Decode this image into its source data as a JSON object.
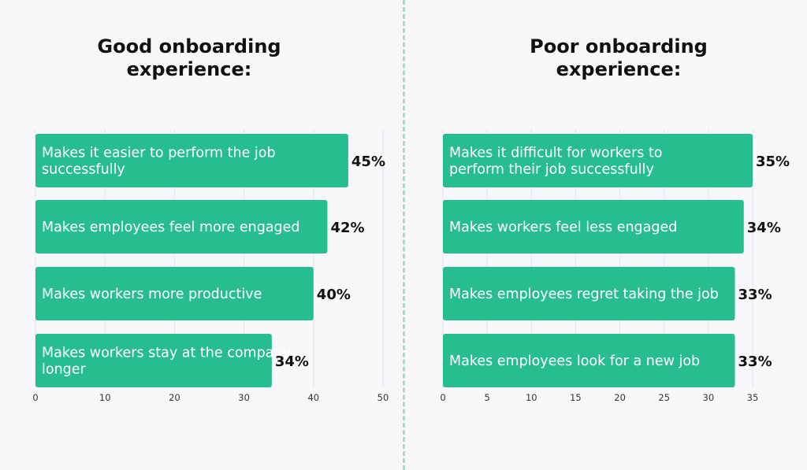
{
  "chart_data": [
    {
      "type": "bar",
      "orientation": "horizontal",
      "title": "Good onboarding experience:",
      "categories": [
        "Makes it easier to perform the job successfully",
        "Makes employees feel more engaged",
        "Makes workers more productive",
        "Makes workers stay at the company longer"
      ],
      "values": [
        45,
        42,
        40,
        34
      ],
      "data_labels": [
        "45%",
        "42%",
        "40%",
        "34%"
      ],
      "xlim": [
        0,
        50
      ],
      "xticks": [
        0,
        10,
        20,
        30,
        40,
        50
      ],
      "grid": true,
      "color": "#27bd91"
    },
    {
      "type": "bar",
      "orientation": "horizontal",
      "title": "Poor onboarding experience:",
      "categories": [
        "Makes it difficult for workers to perform their job successfully",
        "Makes workers feel less engaged",
        "Makes employees regret taking the job",
        "Makes employees look for a new job"
      ],
      "values": [
        35,
        34,
        33,
        33
      ],
      "data_labels": [
        "35%",
        "34%",
        "33%",
        "33%"
      ],
      "xlim": [
        0,
        35
      ],
      "xticks": [
        0,
        5,
        10,
        15,
        20,
        25,
        30,
        35
      ],
      "grid": true,
      "color": "#27bd91"
    }
  ]
}
